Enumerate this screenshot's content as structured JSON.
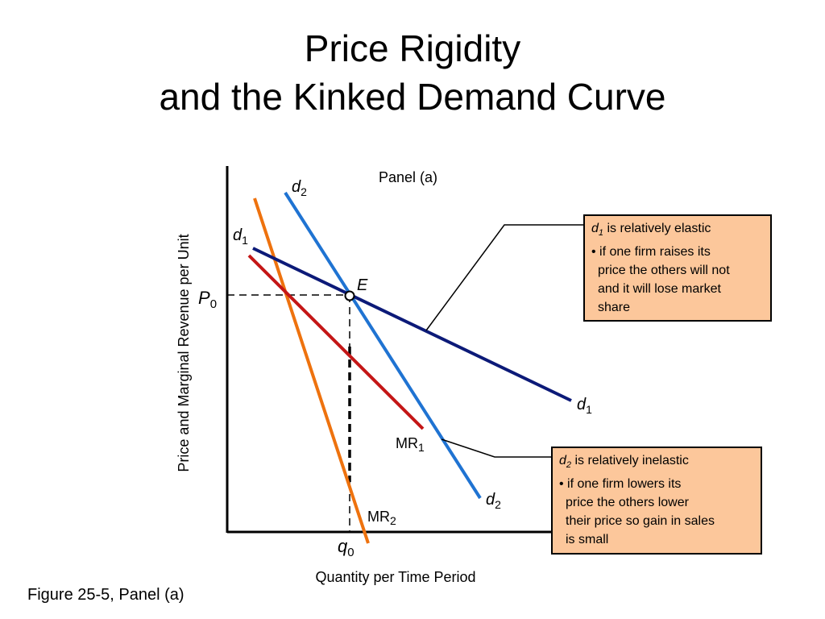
{
  "title": {
    "line1": "Price Rigidity",
    "line2": "and the Kinked Demand Curve"
  },
  "diagram": {
    "panel_label": "Panel (a)",
    "y_axis_label": "Price and Marginal Revenue per Unit",
    "x_axis_label": "Quantity per Time Period",
    "price_label": "P",
    "price_sub": "0",
    "quantity_label": "q",
    "quantity_sub": "0",
    "point_label": "E",
    "d1_label": "d",
    "d1_sub": "1",
    "d2_label": "d",
    "d2_sub": "2",
    "mr1_label": "MR",
    "mr1_sub": "1",
    "mr2_label": "MR",
    "mr2_sub": "2",
    "colors": {
      "d1": "#0c1a78",
      "d2": "#1f73d2",
      "mr1": "#c41616",
      "mr2": "#ee720e",
      "note_bg": "#fcc79b"
    }
  },
  "note_d1": {
    "symbol": "d",
    "sub": "1",
    "heading_rest": " is relatively elastic",
    "lines": [
      "• if one firm raises its",
      "price the others will not",
      "and it will lose market",
      "share"
    ]
  },
  "note_d2": {
    "symbol": "d",
    "sub": "2",
    "heading_rest": " is relatively inelastic",
    "lines": [
      "• if one firm lowers its",
      "price the others lower",
      "their price so gain in sales",
      "is small"
    ]
  },
  "caption": "Figure 25-5, Panel (a)"
}
